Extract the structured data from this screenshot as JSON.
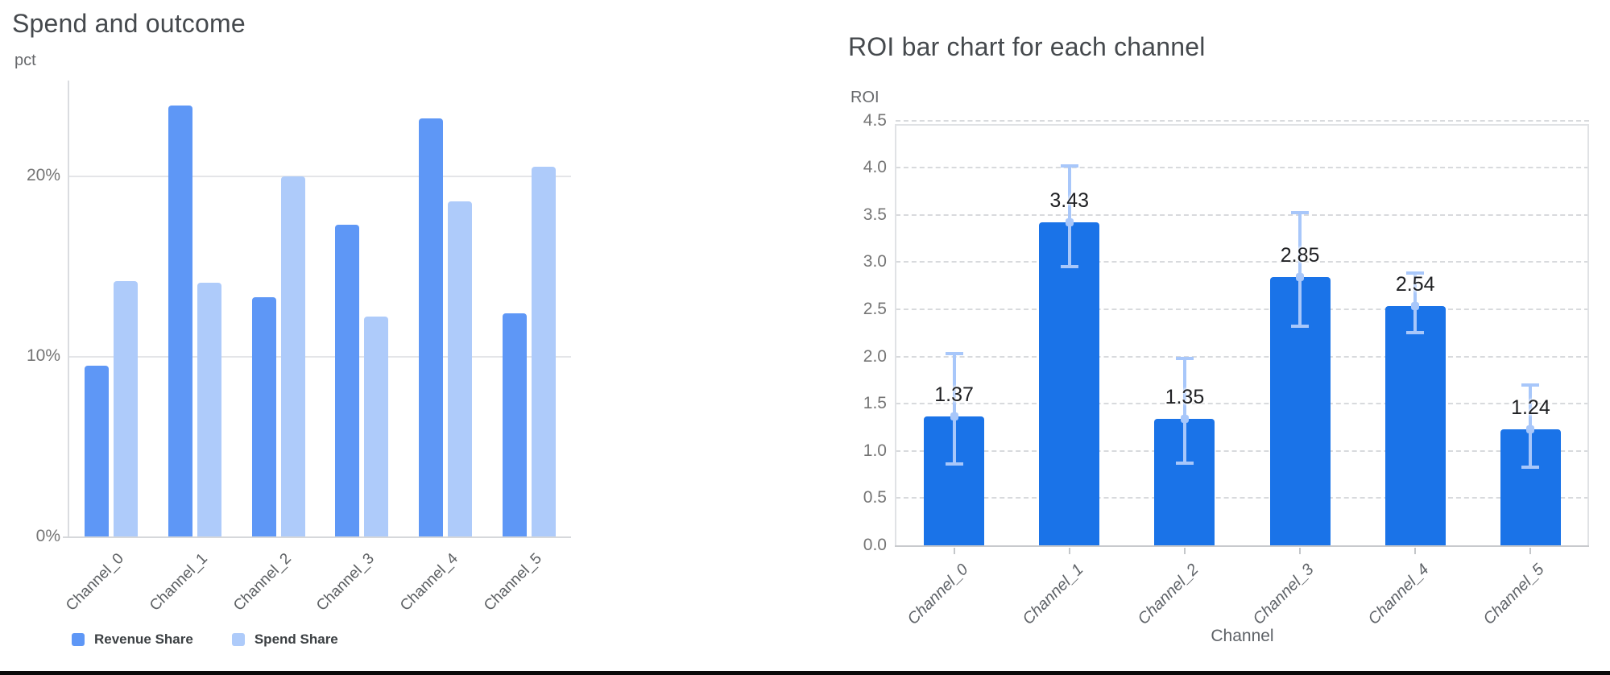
{
  "chart_data": [
    {
      "type": "bar",
      "title": "Spend and outcome",
      "y_axis_label": "pct",
      "categories": [
        "Channel_0",
        "Channel_1",
        "Channel_2",
        "Channel_3",
        "Channel_4",
        "Channel_5"
      ],
      "series": [
        {
          "name": "Revenue Share",
          "color": "#5e97f6",
          "values": [
            9.5,
            23.9,
            13.3,
            17.3,
            23.2,
            12.4
          ]
        },
        {
          "name": "Spend Share",
          "color": "#aecbfa",
          "values": [
            14.2,
            14.1,
            20.0,
            12.2,
            18.6,
            20.5
          ]
        }
      ],
      "y_ticks": [
        {
          "value": 0,
          "label": "0%"
        },
        {
          "value": 10,
          "label": "10%"
        },
        {
          "value": 20,
          "label": "20%"
        }
      ],
      "ylim": [
        0,
        25.3
      ],
      "grid": "horizontal-solid",
      "legend_position": "bottom"
    },
    {
      "type": "bar",
      "title": "ROI bar chart for each channel",
      "y_axis_label": "ROI",
      "x_axis_label": "Channel",
      "categories": [
        "Channel_0",
        "Channel_1",
        "Channel_2",
        "Channel_3",
        "Channel_4",
        "Channel_5"
      ],
      "values": [
        1.37,
        3.43,
        1.35,
        2.85,
        2.54,
        1.24
      ],
      "value_labels": [
        "1.37",
        "3.43",
        "1.35",
        "2.85",
        "2.54",
        "1.24"
      ],
      "error_low": [
        0.87,
        2.96,
        0.88,
        2.33,
        2.26,
        0.84
      ],
      "error_high": [
        2.04,
        4.03,
        1.99,
        3.53,
        2.89,
        1.71
      ],
      "bar_color": "#1a73e8",
      "error_bar_color": "#a8c7fa",
      "y_ticks": [
        {
          "value": 0,
          "label": "0.0"
        },
        {
          "value": 0.5,
          "label": "0.5"
        },
        {
          "value": 1,
          "label": "1.0"
        },
        {
          "value": 1.5,
          "label": "1.5"
        },
        {
          "value": 2,
          "label": "2.0"
        },
        {
          "value": 2.5,
          "label": "2.5"
        },
        {
          "value": 3,
          "label": "3.0"
        },
        {
          "value": 3.5,
          "label": "3.5"
        },
        {
          "value": 4,
          "label": "4.0"
        },
        {
          "value": 4.5,
          "label": "4.5"
        }
      ],
      "ylim": [
        0,
        4.6
      ],
      "grid": "horizontal-dashed",
      "legend_position": "none"
    }
  ]
}
